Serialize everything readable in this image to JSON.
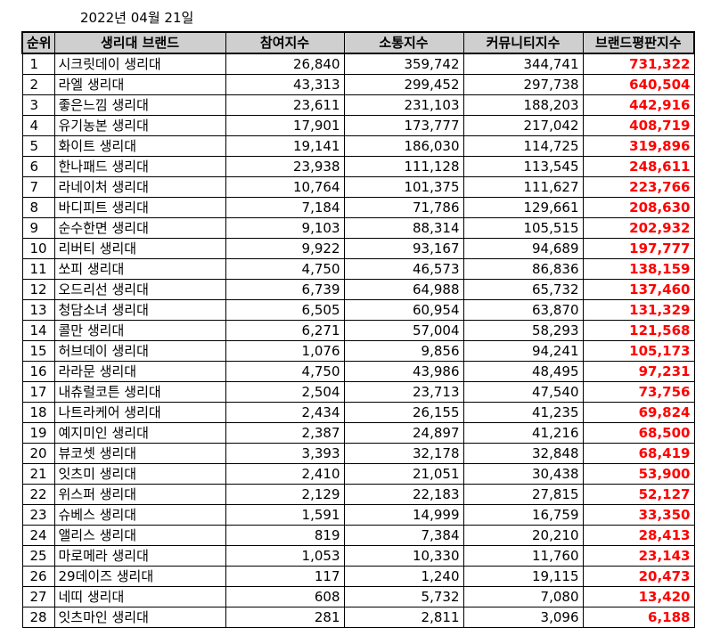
{
  "date": "2022년 04월 21일",
  "headers": [
    "순위",
    "생리대 브랜드",
    "참여지수",
    "소통지수",
    "커뮤니티지수",
    "브랜드평판지수"
  ],
  "rows": [
    [
      "1",
      "시크릿데이 생리대",
      "26,840",
      "359,742",
      "344,741",
      "731,322"
    ],
    [
      "2",
      "라엘 생리대",
      "43,313",
      "299,452",
      "297,738",
      "640,504"
    ],
    [
      "3",
      "좋은느낌 생리대",
      "23,611",
      "231,103",
      "188,203",
      "442,916"
    ],
    [
      "4",
      "유기농본 생리대",
      "17,901",
      "173,777",
      "217,042",
      "408,719"
    ],
    [
      "5",
      "화이트 생리대",
      "19,141",
      "186,030",
      "114,725",
      "319,896"
    ],
    [
      "6",
      "한나패드 생리대",
      "23,938",
      "111,128",
      "113,545",
      "248,611"
    ],
    [
      "7",
      "라네이처 생리대",
      "10,764",
      "101,375",
      "111,627",
      "223,766"
    ],
    [
      "8",
      "바디피트 생리대",
      "7,184",
      "71,786",
      "129,661",
      "208,630"
    ],
    [
      "9",
      "순수한면 생리대",
      "9,103",
      "88,314",
      "105,515",
      "202,932"
    ],
    [
      "10",
      "리버티 생리대",
      "9,922",
      "93,167",
      "94,689",
      "197,777"
    ],
    [
      "11",
      "쏘피 생리대",
      "4,750",
      "46,573",
      "86,836",
      "138,159"
    ],
    [
      "12",
      "오드리선 생리대",
      "6,739",
      "64,988",
      "65,732",
      "137,460"
    ],
    [
      "13",
      "청담소녀 생리대",
      "6,505",
      "60,954",
      "63,870",
      "131,329"
    ],
    [
      "14",
      "콜만 생리대",
      "6,271",
      "57,004",
      "58,293",
      "121,568"
    ],
    [
      "15",
      "허브데이 생리대",
      "1,076",
      "9,856",
      "94,241",
      "105,173"
    ],
    [
      "16",
      "라라문 생리대",
      "4,750",
      "43,986",
      "48,495",
      "97,231"
    ],
    [
      "17",
      "내츄럴코튼 생리대",
      "2,504",
      "23,713",
      "47,540",
      "73,756"
    ],
    [
      "18",
      "나트라케어 생리대",
      "2,434",
      "26,155",
      "41,235",
      "69,824"
    ],
    [
      "19",
      "예지미인 생리대",
      "2,387",
      "24,897",
      "41,216",
      "68,500"
    ],
    [
      "20",
      "뷰코셋 생리대",
      "3,393",
      "32,178",
      "32,848",
      "68,419"
    ],
    [
      "21",
      "잇츠미 생리대",
      "2,410",
      "21,051",
      "30,438",
      "53,900"
    ],
    [
      "22",
      "위스퍼 생리대",
      "2,129",
      "22,183",
      "27,815",
      "52,127"
    ],
    [
      "23",
      "슈베스 생리대",
      "1,591",
      "14,999",
      "16,759",
      "33,350"
    ],
    [
      "24",
      "앨리스 생리대",
      "819",
      "7,384",
      "20,210",
      "28,413"
    ],
    [
      "25",
      "마로메라 생리대",
      "1,053",
      "10,330",
      "11,760",
      "23,143"
    ],
    [
      "26",
      "29데이즈 생리대",
      "117",
      "1,240",
      "19,115",
      "20,473"
    ],
    [
      "27",
      "네띠 생리대",
      "608",
      "5,732",
      "7,080",
      "13,420"
    ],
    [
      "28",
      "잇츠마인 생리대",
      "281",
      "2,811",
      "3,096",
      "6,188"
    ]
  ]
}
